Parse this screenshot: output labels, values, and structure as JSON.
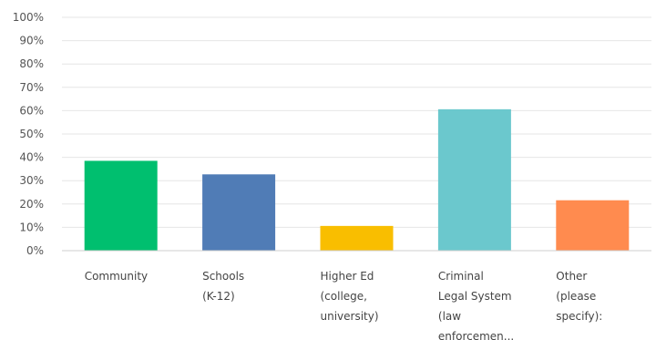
{
  "chart_data": {
    "type": "bar",
    "categories": [
      [
        "Community"
      ],
      [
        "Schools",
        "(K-12)"
      ],
      [
        "Higher Ed",
        "(college,",
        "university)"
      ],
      [
        "Criminal",
        "Legal System",
        "(law",
        "enforcemen..."
      ],
      [
        "Other",
        "(please",
        "specify):"
      ]
    ],
    "values": [
      38.5,
      32.7,
      10.6,
      60.6,
      21.6
    ],
    "colors": [
      "#00bf6f",
      "#507cb6",
      "#f9be00",
      "#6bc8cd",
      "#ff8b4f"
    ],
    "ylim": [
      0,
      100
    ],
    "yticks": [
      "0%",
      "10%",
      "20%",
      "30%",
      "40%",
      "50%",
      "60%",
      "70%",
      "80%",
      "90%",
      "100%"
    ],
    "grid": true,
    "title": "",
    "xlabel": "",
    "ylabel": ""
  }
}
